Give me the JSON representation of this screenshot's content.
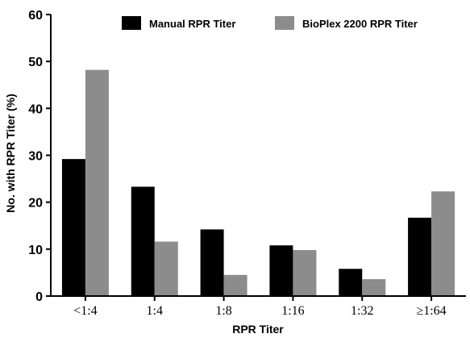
{
  "chart_data": {
    "type": "bar",
    "title": "",
    "xlabel": "RPR Titer",
    "ylabel": "No. with RPR Titer (%)",
    "categories": [
      "<1:4",
      "1:4",
      "1:8",
      "1:16",
      "1:32",
      "≥1:64"
    ],
    "series": [
      {
        "name": "Manual RPR Titer",
        "color": "#000000",
        "values": [
          29.2,
          23.3,
          14.2,
          10.8,
          5.8,
          16.7
        ]
      },
      {
        "name": "BioPlex 2200 RPR Titer",
        "color": "#8c8c8c",
        "values": [
          48.2,
          11.6,
          4.5,
          9.8,
          3.6,
          22.3
        ]
      }
    ],
    "ylim": [
      0,
      60
    ],
    "yticks": [
      0,
      10,
      20,
      30,
      40,
      50,
      60
    ],
    "grid": false,
    "legend_position": "top-right"
  }
}
